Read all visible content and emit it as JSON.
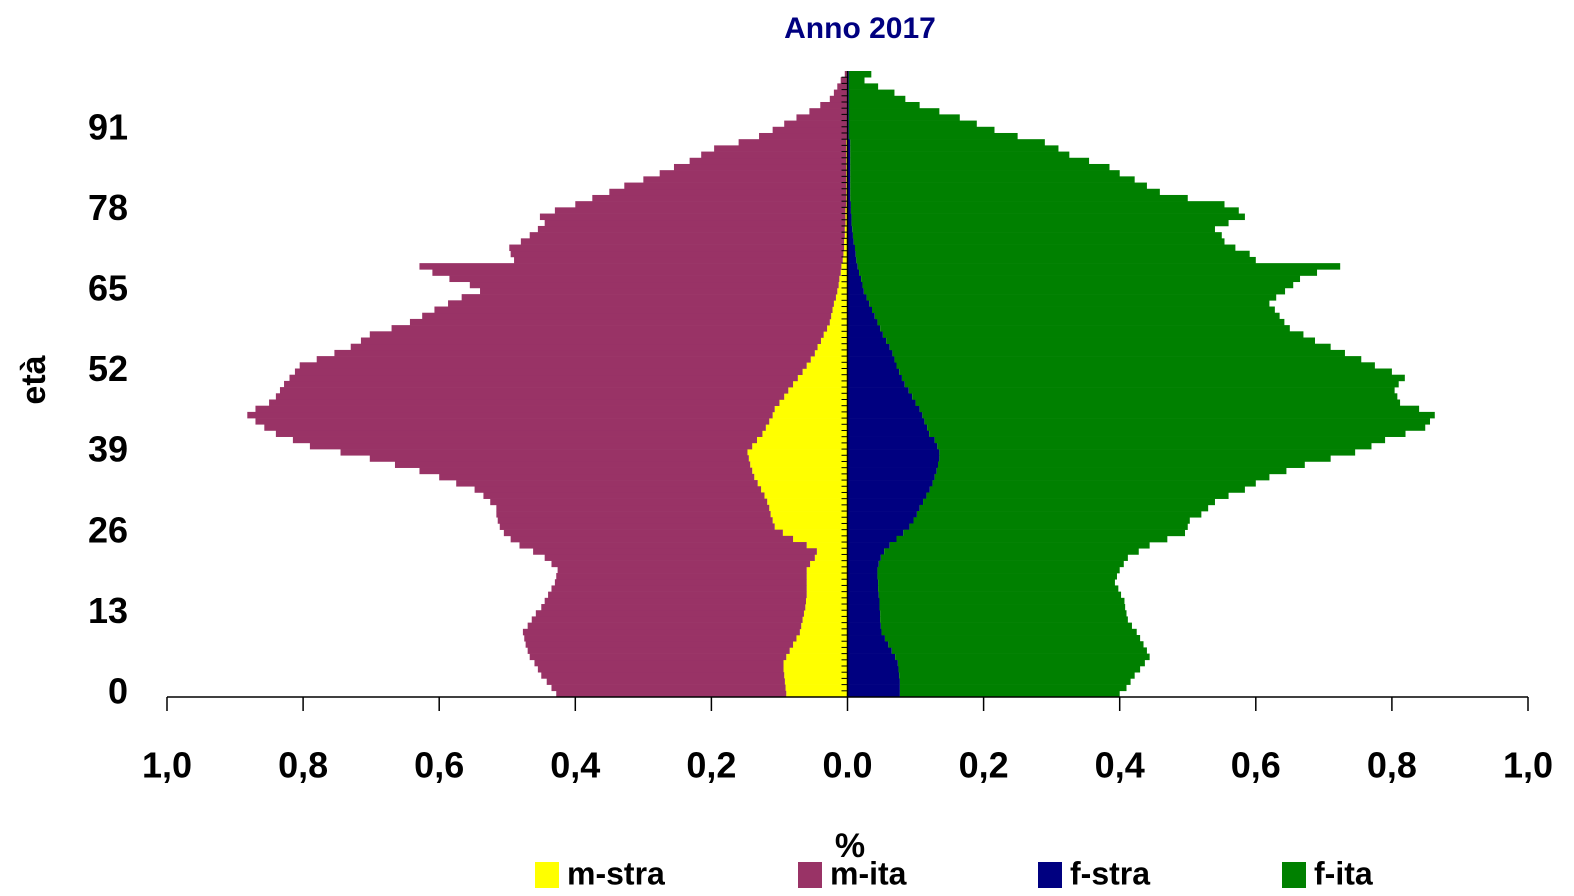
{
  "chart_data": {
    "type": "pyramid",
    "title": "Anno 2017",
    "ylabel": "età",
    "xlabel": "%",
    "categories": [
      "0",
      null,
      null,
      null,
      null,
      null,
      null,
      null,
      null,
      null,
      null,
      null,
      null,
      "13",
      null,
      null,
      null,
      null,
      null,
      null,
      null,
      null,
      null,
      null,
      null,
      null,
      "26",
      null,
      null,
      null,
      null,
      null,
      null,
      null,
      null,
      null,
      null,
      null,
      null,
      "39",
      null,
      null,
      null,
      null,
      null,
      null,
      null,
      null,
      null,
      null,
      null,
      null,
      "52",
      null,
      null,
      null,
      null,
      null,
      null,
      null,
      null,
      null,
      null,
      null,
      null,
      "65",
      null,
      null,
      null,
      null,
      null,
      null,
      null,
      null,
      null,
      null,
      null,
      null,
      "78",
      null,
      null,
      null,
      null,
      null,
      null,
      null,
      null,
      null,
      null,
      null,
      null,
      "91",
      null,
      null,
      null,
      null,
      null,
      null,
      null,
      null,
      null
    ],
    "xlim": [
      -1,
      1
    ],
    "xticks": [
      {
        "value": -1,
        "label": "1,0"
      },
      {
        "value": -0.8,
        "label": "0,8"
      },
      {
        "value": -0.6,
        "label": "0,6"
      },
      {
        "value": -0.4,
        "label": "0,4"
      },
      {
        "value": -0.2,
        "label": "0,2"
      },
      {
        "value": 0,
        "label": "0.0"
      },
      {
        "value": 0.2,
        "label": "0,2"
      },
      {
        "value": 0.4,
        "label": "0,4"
      },
      {
        "value": 0.6,
        "label": "0,6"
      },
      {
        "value": 0.8,
        "label": "0,8"
      },
      {
        "value": 1,
        "label": "1,0"
      }
    ],
    "series": [
      {
        "name": "m-stra",
        "color": "#ffff00",
        "side": "left",
        "values": [
          0.09,
          0.091,
          0.092,
          0.093,
          0.094,
          0.094,
          0.09,
          0.085,
          0.08,
          0.075,
          0.07,
          0.068,
          0.066,
          0.064,
          0.062,
          0.061,
          0.06,
          0.06,
          0.06,
          0.06,
          0.06,
          0.055,
          0.048,
          0.045,
          0.06,
          0.08,
          0.095,
          0.107,
          0.11,
          0.113,
          0.115,
          0.118,
          0.122,
          0.127,
          0.132,
          0.137,
          0.14,
          0.143,
          0.145,
          0.147,
          0.14,
          0.133,
          0.125,
          0.12,
          0.115,
          0.11,
          0.107,
          0.1,
          0.093,
          0.087,
          0.08,
          0.073,
          0.066,
          0.06,
          0.054,
          0.048,
          0.044,
          0.039,
          0.035,
          0.03,
          0.026,
          0.024,
          0.022,
          0.02,
          0.017,
          0.015,
          0.013,
          0.012,
          0.01,
          0.009,
          0.007,
          0.006,
          0.005,
          0.005,
          0.004,
          0.004,
          0.003,
          0.003,
          0.003,
          0.002,
          0.002,
          0.002,
          0.002,
          0.002,
          0.002,
          0.002,
          0.002,
          0.002,
          0.002,
          0.002,
          0.001,
          0.001,
          0.001,
          0.001,
          0.001,
          0.001,
          0.001,
          0.001,
          0.001,
          0.001,
          0.001
        ]
      },
      {
        "name": "m-ita",
        "color": "#993366",
        "side": "left",
        "values": [
          0.338,
          0.344,
          0.35,
          0.357,
          0.361,
          0.366,
          0.377,
          0.385,
          0.393,
          0.4,
          0.407,
          0.402,
          0.398,
          0.394,
          0.388,
          0.384,
          0.38,
          0.375,
          0.37,
          0.368,
          0.366,
          0.38,
          0.397,
          0.417,
          0.422,
          0.415,
          0.41,
          0.404,
          0.404,
          0.403,
          0.401,
          0.407,
          0.413,
          0.421,
          0.443,
          0.463,
          0.489,
          0.522,
          0.557,
          0.598,
          0.65,
          0.682,
          0.715,
          0.737,
          0.755,
          0.772,
          0.763,
          0.75,
          0.747,
          0.747,
          0.748,
          0.747,
          0.746,
          0.745,
          0.726,
          0.706,
          0.686,
          0.676,
          0.667,
          0.64,
          0.617,
          0.601,
          0.585,
          0.567,
          0.55,
          0.525,
          0.542,
          0.573,
          0.6,
          0.62,
          0.483,
          0.489,
          0.492,
          0.475,
          0.463,
          0.451,
          0.442,
          0.449,
          0.427,
          0.398,
          0.373,
          0.348,
          0.326,
          0.298,
          0.274,
          0.253,
          0.23,
          0.213,
          0.194,
          0.158,
          0.129,
          0.109,
          0.092,
          0.074,
          0.055,
          0.039,
          0.025,
          0.019,
          0.014,
          0.009,
          0.003
        ]
      },
      {
        "name": "f-stra",
        "color": "#000080",
        "side": "right",
        "values": [
          0.077,
          0.077,
          0.077,
          0.076,
          0.075,
          0.074,
          0.07,
          0.065,
          0.06,
          0.055,
          0.05,
          0.049,
          0.048,
          0.048,
          0.047,
          0.047,
          0.046,
          0.045,
          0.045,
          0.044,
          0.044,
          0.046,
          0.049,
          0.054,
          0.062,
          0.072,
          0.082,
          0.091,
          0.097,
          0.102,
          0.106,
          0.111,
          0.116,
          0.121,
          0.125,
          0.128,
          0.131,
          0.133,
          0.135,
          0.135,
          0.132,
          0.128,
          0.12,
          0.117,
          0.113,
          0.11,
          0.106,
          0.1,
          0.095,
          0.09,
          0.084,
          0.08,
          0.076,
          0.072,
          0.069,
          0.066,
          0.062,
          0.057,
          0.052,
          0.048,
          0.044,
          0.04,
          0.036,
          0.032,
          0.028,
          0.024,
          0.022,
          0.02,
          0.017,
          0.015,
          0.013,
          0.012,
          0.011,
          0.009,
          0.008,
          0.007,
          0.006,
          0.006,
          0.005,
          0.005,
          0.004,
          0.004,
          0.004,
          0.004,
          0.004,
          0.004,
          0.004,
          0.004,
          0.004,
          0.004,
          0.002,
          0.002,
          0.002,
          0.002,
          0.002,
          0.002,
          0.002,
          0.002,
          0.002,
          0.002,
          0.002
        ]
      },
      {
        "name": "f-ita",
        "color": "#008000",
        "side": "right",
        "values": [
          0.323,
          0.333,
          0.339,
          0.346,
          0.355,
          0.363,
          0.374,
          0.375,
          0.375,
          0.375,
          0.375,
          0.369,
          0.364,
          0.362,
          0.361,
          0.36,
          0.356,
          0.353,
          0.348,
          0.352,
          0.356,
          0.36,
          0.363,
          0.374,
          0.382,
          0.398,
          0.414,
          0.409,
          0.406,
          0.418,
          0.424,
          0.429,
          0.444,
          0.463,
          0.475,
          0.492,
          0.514,
          0.539,
          0.575,
          0.611,
          0.638,
          0.662,
          0.7,
          0.732,
          0.743,
          0.753,
          0.734,
          0.712,
          0.713,
          0.714,
          0.726,
          0.739,
          0.724,
          0.703,
          0.686,
          0.665,
          0.648,
          0.63,
          0.618,
          0.602,
          0.598,
          0.595,
          0.592,
          0.588,
          0.602,
          0.619,
          0.633,
          0.645,
          0.673,
          0.709,
          0.587,
          0.579,
          0.559,
          0.545,
          0.542,
          0.533,
          0.554,
          0.578,
          0.57,
          0.549,
          0.496,
          0.455,
          0.436,
          0.418,
          0.396,
          0.381,
          0.351,
          0.322,
          0.306,
          0.286,
          0.248,
          0.214,
          0.188,
          0.163,
          0.133,
          0.104,
          0.083,
          0.067,
          0.043,
          0.023,
          0.033
        ]
      }
    ]
  }
}
